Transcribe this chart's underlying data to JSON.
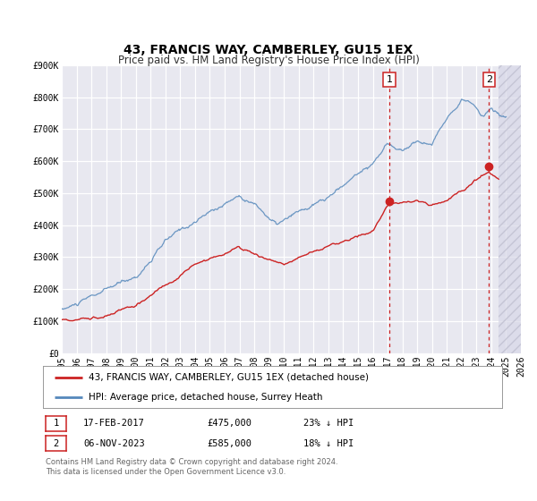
{
  "title": "43, FRANCIS WAY, CAMBERLEY, GU15 1EX",
  "subtitle": "Price paid vs. HM Land Registry's House Price Index (HPI)",
  "ylim": [
    0,
    900000
  ],
  "xlim": [
    1995,
    2026
  ],
  "yticks": [
    0,
    100000,
    200000,
    300000,
    400000,
    500000,
    600000,
    700000,
    800000,
    900000
  ],
  "ytick_labels": [
    "£0",
    "£100K",
    "£200K",
    "£300K",
    "£400K",
    "£500K",
    "£600K",
    "£700K",
    "£800K",
    "£900K"
  ],
  "xticks": [
    1995,
    1996,
    1997,
    1998,
    1999,
    2000,
    2001,
    2002,
    2003,
    2004,
    2005,
    2006,
    2007,
    2008,
    2009,
    2010,
    2011,
    2012,
    2013,
    2014,
    2015,
    2016,
    2017,
    2018,
    2019,
    2020,
    2021,
    2022,
    2023,
    2024,
    2025,
    2026
  ],
  "fig_bg": "#ffffff",
  "plot_bg": "#e8e8f0",
  "grid_color": "#ffffff",
  "hpi_color": "#5588bb",
  "price_color": "#cc2222",
  "hatch_color": "#cccccc",
  "hatch_start": 2024.5,
  "marker1_x": 2017.12,
  "marker1_y": 475000,
  "marker2_x": 2023.84,
  "marker2_y": 585000,
  "vline1_x": 2017.12,
  "vline2_x": 2023.84,
  "legend_label1": "43, FRANCIS WAY, CAMBERLEY, GU15 1EX (detached house)",
  "legend_label2": "HPI: Average price, detached house, Surrey Heath",
  "table_row1": [
    "1",
    "17-FEB-2017",
    "£475,000",
    "23% ↓ HPI"
  ],
  "table_row2": [
    "2",
    "06-NOV-2023",
    "£585,000",
    "18% ↓ HPI"
  ],
  "footer": "Contains HM Land Registry data © Crown copyright and database right 2024.\nThis data is licensed under the Open Government Licence v3.0.",
  "title_fontsize": 10,
  "subtitle_fontsize": 8.5,
  "tick_fontsize": 7,
  "legend_fontsize": 7.5,
  "table_fontsize": 7.5,
  "footer_fontsize": 6
}
